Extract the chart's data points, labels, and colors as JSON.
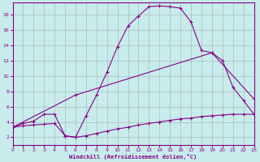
{
  "xlabel": "Windchill (Refroidissement éolien,°C)",
  "background_color": "#c8ecec",
  "grid_color": "#aabbbb",
  "line_color": "#880088",
  "xmin": 0,
  "xmax": 23,
  "ymin": 1.0,
  "ymax": 19.5,
  "yticks": [
    2,
    4,
    6,
    8,
    10,
    12,
    14,
    16,
    18
  ],
  "xticks": [
    0,
    1,
    2,
    3,
    4,
    5,
    6,
    7,
    8,
    9,
    10,
    11,
    12,
    13,
    14,
    15,
    16,
    17,
    18,
    19,
    20,
    21,
    22,
    23
  ],
  "curve1_x": [
    0,
    1,
    2,
    3,
    4,
    5,
    6,
    7,
    8,
    9,
    10,
    11,
    12,
    13,
    14,
    15,
    16,
    17,
    18,
    19,
    20,
    21,
    22,
    23
  ],
  "curve1_y": [
    3.3,
    3.8,
    4.1,
    5.0,
    5.0,
    2.2,
    2.0,
    4.8,
    7.5,
    10.5,
    13.8,
    16.5,
    17.8,
    19.0,
    19.1,
    19.0,
    18.8,
    17.0,
    13.3,
    13.0,
    12.0,
    8.5,
    6.8,
    5.0
  ],
  "curve2_x": [
    0,
    6,
    19,
    23
  ],
  "curve2_y": [
    3.3,
    7.5,
    13.0,
    7.0
  ],
  "curve3_x": [
    0,
    1,
    2,
    3,
    4,
    5,
    6,
    7,
    8,
    9,
    10,
    11,
    12,
    13,
    14,
    15,
    16,
    17,
    18,
    19,
    20,
    21,
    22,
    23
  ],
  "curve3_y": [
    3.3,
    3.5,
    3.6,
    3.7,
    3.8,
    2.2,
    2.0,
    2.2,
    2.5,
    2.8,
    3.1,
    3.3,
    3.6,
    3.8,
    4.0,
    4.2,
    4.4,
    4.5,
    4.7,
    4.8,
    4.9,
    5.0,
    5.0,
    5.0
  ]
}
